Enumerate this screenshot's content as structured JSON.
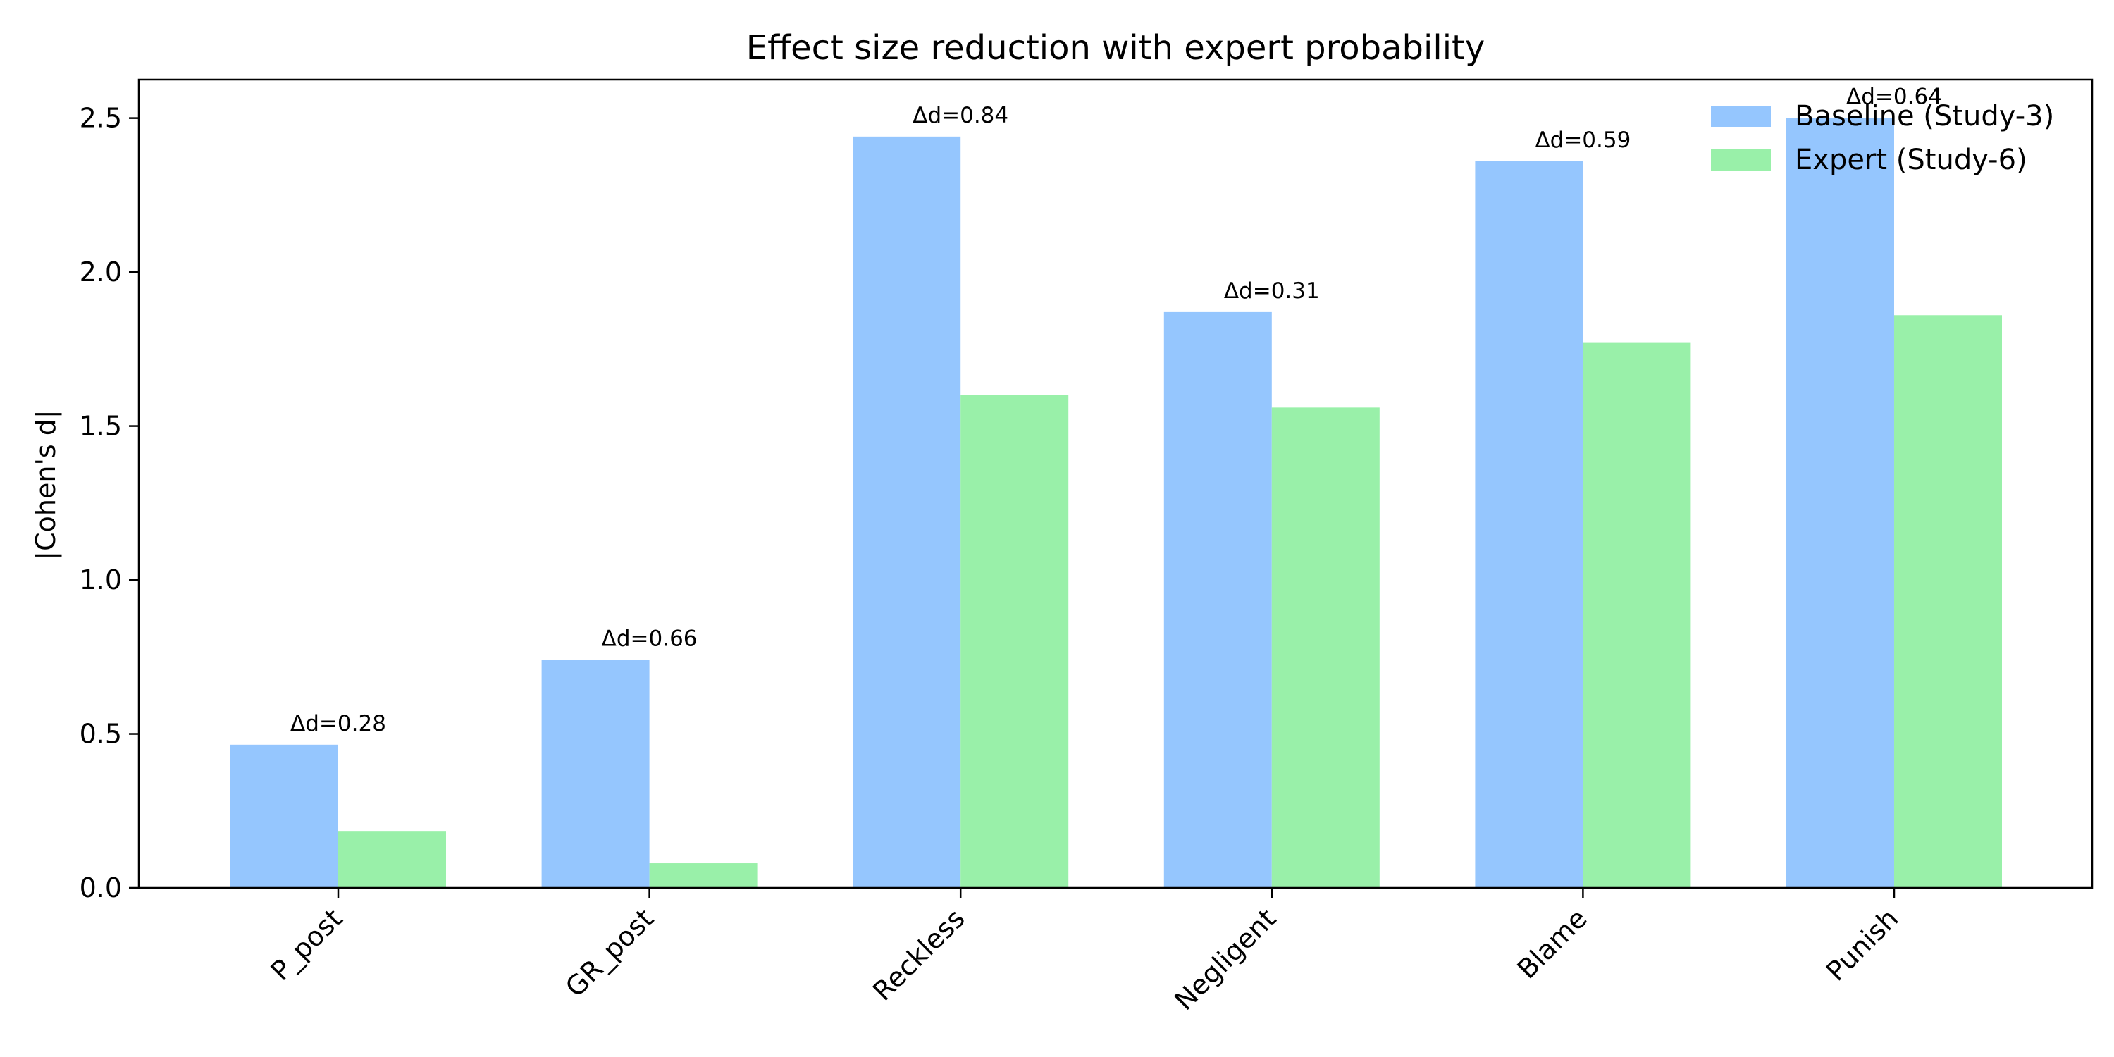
{
  "chart_data": {
    "type": "bar",
    "title": "Effect size reduction with expert probability",
    "xlabel": "",
    "ylabel": "|Cohen's d|",
    "categories": [
      "P_post",
      "GR_post",
      "Reckless",
      "Negligent",
      "Blame",
      "Punish"
    ],
    "series": [
      {
        "name": "Baseline (Study-3)",
        "color": "#95c6fe",
        "values": [
          0.465,
          0.74,
          2.44,
          1.87,
          2.36,
          2.5
        ]
      },
      {
        "name": "Expert (Study-6)",
        "color": "#99f0a9",
        "values": [
          0.185,
          0.08,
          1.6,
          1.56,
          1.77,
          1.86
        ]
      }
    ],
    "annotations": [
      "Δd=0.28",
      "Δd=0.66",
      "Δd=0.84",
      "Δd=0.31",
      "Δd=0.59",
      "Δd=0.64"
    ],
    "ylim": [
      0,
      2.625
    ],
    "yticks": [
      "0.0",
      "0.5",
      "1.0",
      "1.5",
      "2.0",
      "2.5"
    ],
    "grid": false,
    "legend_position": "top-right"
  }
}
